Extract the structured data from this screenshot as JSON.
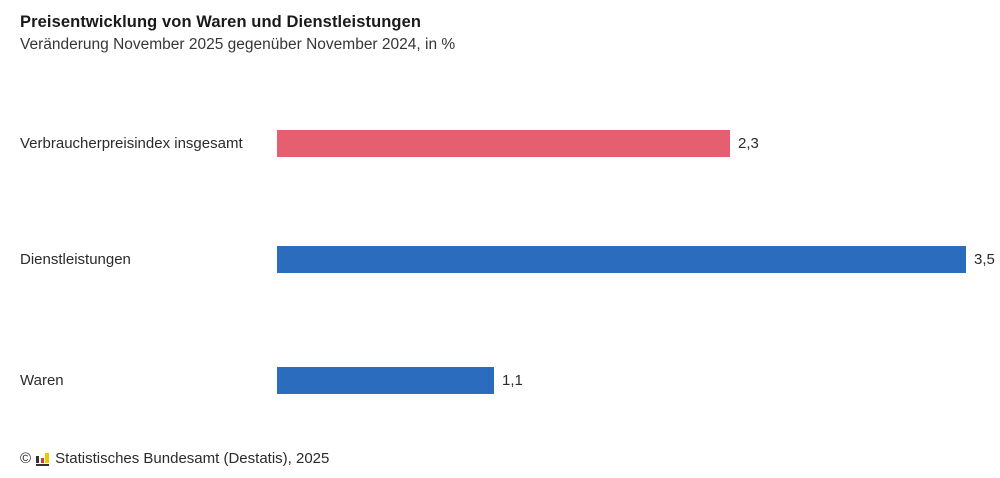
{
  "chart_data": {
    "type": "bar",
    "orientation": "horizontal",
    "title": "Preisentwicklung von Waren und Dienstleistungen",
    "subtitle": "Veränderung November 2025 gegenüber November 2024, in %",
    "categories": [
      "Verbraucherpreisindex insgesamt",
      "Dienstleistungen",
      "Waren"
    ],
    "values": [
      2.3,
      3.5,
      1.1
    ],
    "value_labels": [
      "2,3",
      "3,5",
      "1,1"
    ],
    "bar_colors": [
      "#e55f70",
      "#2c6cbe",
      "#2c6cbe"
    ],
    "unit": "%",
    "xlim": [
      0,
      3.5
    ],
    "grid": false,
    "legend": false,
    "value_label_position": "right-of-bar"
  },
  "footer": {
    "copyright_symbol": "©",
    "source": "Statistisches Bundesamt (Destatis), 2025",
    "logo_icon": "destatis-column-chart-icon",
    "logo_colors": [
      "#333333",
      "#d4373e",
      "#f0c600",
      "#333333"
    ]
  },
  "colors": {
    "background": "#ffffff",
    "title_text": "#1a1a1a",
    "body_text": "#2b2b2b"
  }
}
